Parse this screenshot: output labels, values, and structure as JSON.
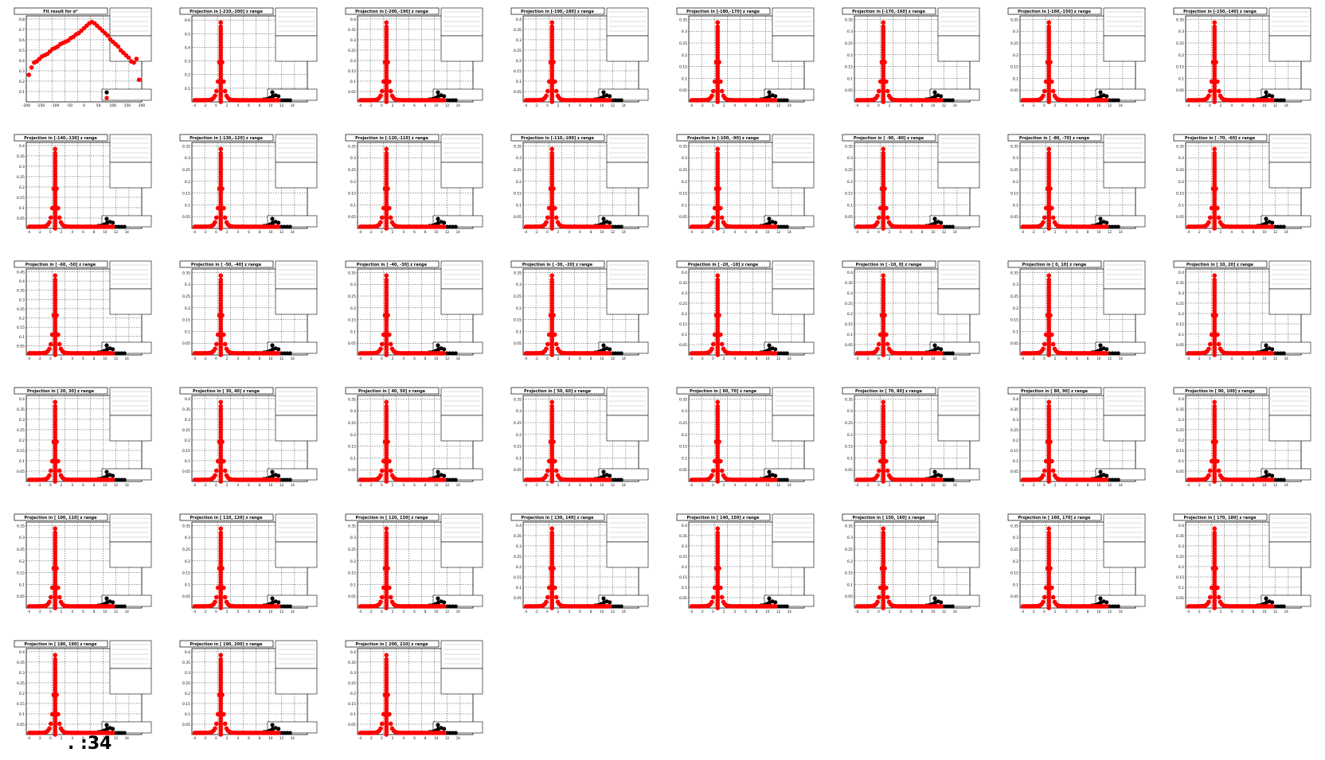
{
  "footer_text": ". :34",
  "colors": {
    "fit": "#ff0000",
    "data": "#000000",
    "frame": "#000000",
    "grid": "#000000"
  },
  "chart_data": [
    {
      "type": "scatter",
      "title": "Fit result for σ²",
      "ylim": [
        0.1,
        0.8
      ],
      "xlim": [
        -220,
        220
      ],
      "yticks": [
        "0.1",
        "0.2",
        "0.3",
        "0.4",
        "0.5",
        "0.6",
        "0.7",
        "0.8"
      ],
      "xticks": [
        "-200",
        "-150",
        "-100",
        "-50",
        "0",
        "50",
        "100",
        "150",
        "200"
      ],
      "x": [
        -210,
        -200,
        -190,
        -180,
        -170,
        -160,
        -150,
        -140,
        -130,
        -120,
        -110,
        -100,
        -90,
        -80,
        -70,
        -60,
        -50,
        -40,
        -30,
        -20,
        -10,
        0,
        10,
        20,
        30,
        40,
        50,
        60,
        70,
        80,
        90,
        100,
        110,
        120,
        130,
        140,
        150,
        160,
        170,
        180,
        190,
        200,
        210
      ],
      "values": [
        0.32,
        0.38,
        0.42,
        0.43,
        0.45,
        0.47,
        0.48,
        0.49,
        0.51,
        0.53,
        0.54,
        0.55,
        0.57,
        0.58,
        0.59,
        0.6,
        0.62,
        0.63,
        0.65,
        0.66,
        0.68,
        0.7,
        0.72,
        0.74,
        0.75,
        0.74,
        0.72,
        0.7,
        0.68,
        0.66,
        0.64,
        0.61,
        0.59,
        0.57,
        0.55,
        0.52,
        0.5,
        0.48,
        0.46,
        0.43,
        0.42,
        0.45,
        0.28
      ]
    },
    {
      "type": "scatter",
      "title": "Projection in [-210,-200] z range",
      "ymax": 0.6,
      "yticks": [
        "0.1",
        "0.2",
        "0.3",
        "0.4",
        "0.5",
        "0.6"
      ]
    },
    {
      "type": "scatter",
      "title": "Projection in [-200,-190] z range",
      "ymax": 0.4,
      "yticks": [
        "0.05",
        "0.1",
        "0.15",
        "0.2",
        "0.25",
        "0.3",
        "0.35",
        "0.4"
      ]
    },
    {
      "type": "scatter",
      "title": "Projection in [-190,-180] z range",
      "ymax": 0.4,
      "yticks": [
        "0.05",
        "0.1",
        "0.15",
        "0.2",
        "0.25",
        "0.3",
        "0.35",
        "0.4"
      ]
    },
    {
      "type": "scatter",
      "title": "Projection in [-180,-170] z range",
      "ymax": 0.35,
      "yticks": [
        "0.05",
        "0.1",
        "0.15",
        "0.2",
        "0.25",
        "0.3",
        "0.35"
      ]
    },
    {
      "type": "scatter",
      "title": "Projection in [-170,-160] z range",
      "ymax": 0.35,
      "yticks": [
        "0.05",
        "0.1",
        "0.15",
        "0.2",
        "0.25",
        "0.3",
        "0.35"
      ]
    },
    {
      "type": "scatter",
      "title": "Projection in [-160,-150] z range",
      "ymax": 0.35,
      "yticks": [
        "0.05",
        "0.1",
        "0.15",
        "0.2",
        "0.25",
        "0.3",
        "0.35"
      ]
    },
    {
      "type": "scatter",
      "title": "Projection in [-150,-140] z range",
      "ymax": 0.35,
      "yticks": [
        "0.05",
        "0.1",
        "0.15",
        "0.2",
        "0.25",
        "0.3",
        "0.35"
      ]
    },
    {
      "type": "scatter",
      "title": "Projection in [-140,-130] z range",
      "ymax": 0.4,
      "yticks": [
        "0.05",
        "0.1",
        "0.15",
        "0.2",
        "0.25",
        "0.3",
        "0.35",
        "0.4"
      ]
    },
    {
      "type": "scatter",
      "title": "Projection in [-130,-120] z range",
      "ymax": 0.35,
      "yticks": [
        "0.05",
        "0.1",
        "0.15",
        "0.2",
        "0.25",
        "0.3",
        "0.35"
      ]
    },
    {
      "type": "scatter",
      "title": "Projection in [-120,-110] z range",
      "ymax": 0.35,
      "yticks": [
        "0.05",
        "0.1",
        "0.15",
        "0.2",
        "0.25",
        "0.3",
        "0.35"
      ]
    },
    {
      "type": "scatter",
      "title": "Projection in [-110,-100] z range",
      "ymax": 0.35,
      "yticks": [
        "0.05",
        "0.1",
        "0.15",
        "0.2",
        "0.25",
        "0.3",
        "0.35"
      ]
    },
    {
      "type": "scatter",
      "title": "Projection in [-100, -90] z range",
      "ymax": 0.35,
      "yticks": [
        "0.05",
        "0.1",
        "0.15",
        "0.2",
        "0.25",
        "0.3",
        "0.35"
      ]
    },
    {
      "type": "scatter",
      "title": "Projection in [ -90, -80] z range",
      "ymax": 0.35,
      "yticks": [
        "0.05",
        "0.1",
        "0.15",
        "0.2",
        "0.25",
        "0.3",
        "0.35"
      ]
    },
    {
      "type": "scatter",
      "title": "Projection in [ -80, -70] z range",
      "ymax": 0.35,
      "yticks": [
        "0.05",
        "0.1",
        "0.15",
        "0.2",
        "0.25",
        "0.3",
        "0.35"
      ]
    },
    {
      "type": "scatter",
      "title": "Projection in [ -70, -60] z range",
      "ymax": 0.35,
      "yticks": [
        "0.05",
        "0.1",
        "0.15",
        "0.2",
        "0.25",
        "0.3",
        "0.35"
      ]
    },
    {
      "type": "scatter",
      "title": "Projection in [ -60, -50] z range",
      "ymax": 0.45,
      "yticks": [
        "0.05",
        "0.1",
        "0.15",
        "0.2",
        "0.25",
        "0.3",
        "0.35",
        "0.4",
        "0.45"
      ]
    },
    {
      "type": "scatter",
      "title": "Projection in [ -50, -40] z range",
      "ymax": 0.35,
      "yticks": [
        "0.05",
        "0.1",
        "0.15",
        "0.2",
        "0.25",
        "0.3",
        "0.35"
      ]
    },
    {
      "type": "scatter",
      "title": "Projection in [ -40, -30] z range",
      "ymax": 0.35,
      "yticks": [
        "0.05",
        "0.1",
        "0.15",
        "0.2",
        "0.25",
        "0.3",
        "0.35"
      ]
    },
    {
      "type": "scatter",
      "title": "Projection in [ -30, -20] z range",
      "ymax": 0.35,
      "yticks": [
        "0.05",
        "0.1",
        "0.15",
        "0.2",
        "0.25",
        "0.3",
        "0.35"
      ]
    },
    {
      "type": "scatter",
      "title": "Projection in [ -20, -10] z range",
      "ymax": 0.4,
      "yticks": [
        "0.05",
        "0.1",
        "0.15",
        "0.2",
        "0.25",
        "0.3",
        "0.35",
        "0.4"
      ]
    },
    {
      "type": "scatter",
      "title": "Projection in [ -10, 0] z range",
      "ymax": 0.4,
      "yticks": [
        "0.05",
        "0.1",
        "0.15",
        "0.2",
        "0.25",
        "0.3",
        "0.35",
        "0.4"
      ]
    },
    {
      "type": "scatter",
      "title": "Projection in [ 0, 10] z range",
      "ymax": 0.35,
      "yticks": [
        "0.05",
        "0.1",
        "0.15",
        "0.2",
        "0.25",
        "0.3",
        "0.35"
      ]
    },
    {
      "type": "scatter",
      "title": "Projection in [ 10, 20] z range",
      "ymax": 0.4,
      "yticks": [
        "0.05",
        "0.1",
        "0.15",
        "0.2",
        "0.25",
        "0.3",
        "0.35",
        "0.4"
      ]
    },
    {
      "type": "scatter",
      "title": "Projection in [ 20, 30] z range",
      "ymax": 0.4,
      "yticks": [
        "0.05",
        "0.1",
        "0.15",
        "0.2",
        "0.25",
        "0.3",
        "0.35",
        "0.4"
      ]
    },
    {
      "type": "scatter",
      "title": "Projection in [ 30, 40] z range",
      "ymax": 0.4,
      "yticks": [
        "0.05",
        "0.1",
        "0.15",
        "0.2",
        "0.25",
        "0.3",
        "0.35",
        "0.4"
      ]
    },
    {
      "type": "scatter",
      "title": "Projection in [ 40, 50] z range",
      "ymax": 0.35,
      "yticks": [
        "0.05",
        "0.1",
        "0.15",
        "0.2",
        "0.25",
        "0.3",
        "0.35"
      ]
    },
    {
      "type": "scatter",
      "title": "Projection in [ 50, 60] z range",
      "ymax": 0.35,
      "yticks": [
        "0.05",
        "0.1",
        "0.15",
        "0.2",
        "0.25",
        "0.3",
        "0.35"
      ]
    },
    {
      "type": "scatter",
      "title": "Projection in [ 60, 70] z range",
      "ymax": 0.35,
      "yticks": [
        "0.05",
        "0.1",
        "0.15",
        "0.2",
        "0.25",
        "0.3",
        "0.35"
      ]
    },
    {
      "type": "scatter",
      "title": "Projection in [ 70, 80] z range",
      "ymax": 0.35,
      "yticks": [
        "0.05",
        "0.1",
        "0.15",
        "0.2",
        "0.25",
        "0.3",
        "0.35"
      ]
    },
    {
      "type": "scatter",
      "title": "Projection in [ 80, 90] z range",
      "ymax": 0.4,
      "yticks": [
        "0.05",
        "0.1",
        "0.15",
        "0.2",
        "0.25",
        "0.3",
        "0.35",
        "0.4"
      ]
    },
    {
      "type": "scatter",
      "title": "Projection in [ 90, 100] z range",
      "ymax": 0.4,
      "yticks": [
        "0.05",
        "0.1",
        "0.15",
        "0.2",
        "0.25",
        "0.3",
        "0.35",
        "0.4"
      ]
    },
    {
      "type": "scatter",
      "title": "Projection in [ 100, 110] z range",
      "ymax": 0.35,
      "yticks": [
        "0.05",
        "0.1",
        "0.15",
        "0.2",
        "0.25",
        "0.3",
        "0.35"
      ]
    },
    {
      "type": "scatter",
      "title": "Projection in [ 110, 120] z range",
      "ymax": 0.35,
      "yticks": [
        "0.05",
        "0.1",
        "0.15",
        "0.2",
        "0.25",
        "0.3",
        "0.35"
      ]
    },
    {
      "type": "scatter",
      "title": "Projection in [ 120, 130] z range",
      "ymax": 0.35,
      "yticks": [
        "0.05",
        "0.1",
        "0.15",
        "0.2",
        "0.25",
        "0.3",
        "0.35"
      ]
    },
    {
      "type": "scatter",
      "title": "Projection in [ 130, 140] z range",
      "ymax": 0.4,
      "yticks": [
        "0.05",
        "0.1",
        "0.15",
        "0.2",
        "0.25",
        "0.3",
        "0.35",
        "0.4"
      ]
    },
    {
      "type": "scatter",
      "title": "Projection in [ 140, 150] z range",
      "ymax": 0.4,
      "yticks": [
        "0.05",
        "0.1",
        "0.15",
        "0.2",
        "0.25",
        "0.3",
        "0.35",
        "0.4"
      ]
    },
    {
      "type": "scatter",
      "title": "Projection in [ 150, 160] z range",
      "ymax": 0.35,
      "yticks": [
        "0.05",
        "0.1",
        "0.15",
        "0.2",
        "0.25",
        "0.3",
        "0.35"
      ]
    },
    {
      "type": "scatter",
      "title": "Projection in [ 160, 170] z range",
      "ymax": 0.35,
      "yticks": [
        "0.05",
        "0.1",
        "0.15",
        "0.2",
        "0.25",
        "0.3",
        "0.35"
      ]
    },
    {
      "type": "scatter",
      "title": "Projection in [ 170, 180] z range",
      "ymax": 0.4,
      "yticks": [
        "0.05",
        "0.1",
        "0.15",
        "0.2",
        "0.25",
        "0.3",
        "0.35",
        "0.4"
      ]
    },
    {
      "type": "scatter",
      "title": "Projection in [ 180, 190] z range",
      "ymax": 0.4,
      "yticks": [
        "0.05",
        "0.1",
        "0.15",
        "0.2",
        "0.25",
        "0.3",
        "0.35",
        "0.4"
      ]
    },
    {
      "type": "scatter",
      "title": "Projection in [ 190, 200] z range",
      "ymax": 0.4,
      "yticks": [
        "0.05",
        "0.1",
        "0.15",
        "0.2",
        "0.25",
        "0.3",
        "0.35",
        "0.4"
      ]
    },
    {
      "type": "scatter",
      "title": "Projection in [ 200, 210] z range",
      "ymax": 0.4,
      "yticks": [
        "0.05",
        "0.1",
        "0.15",
        "0.2",
        "0.25",
        "0.3",
        "0.35",
        "0.4"
      ]
    }
  ],
  "projection_xticks": [
    "-4",
    "-2",
    "0",
    "2",
    "4",
    "6",
    "8",
    "10",
    "12",
    "14"
  ],
  "projection_xlim": [
    -5,
    15
  ]
}
